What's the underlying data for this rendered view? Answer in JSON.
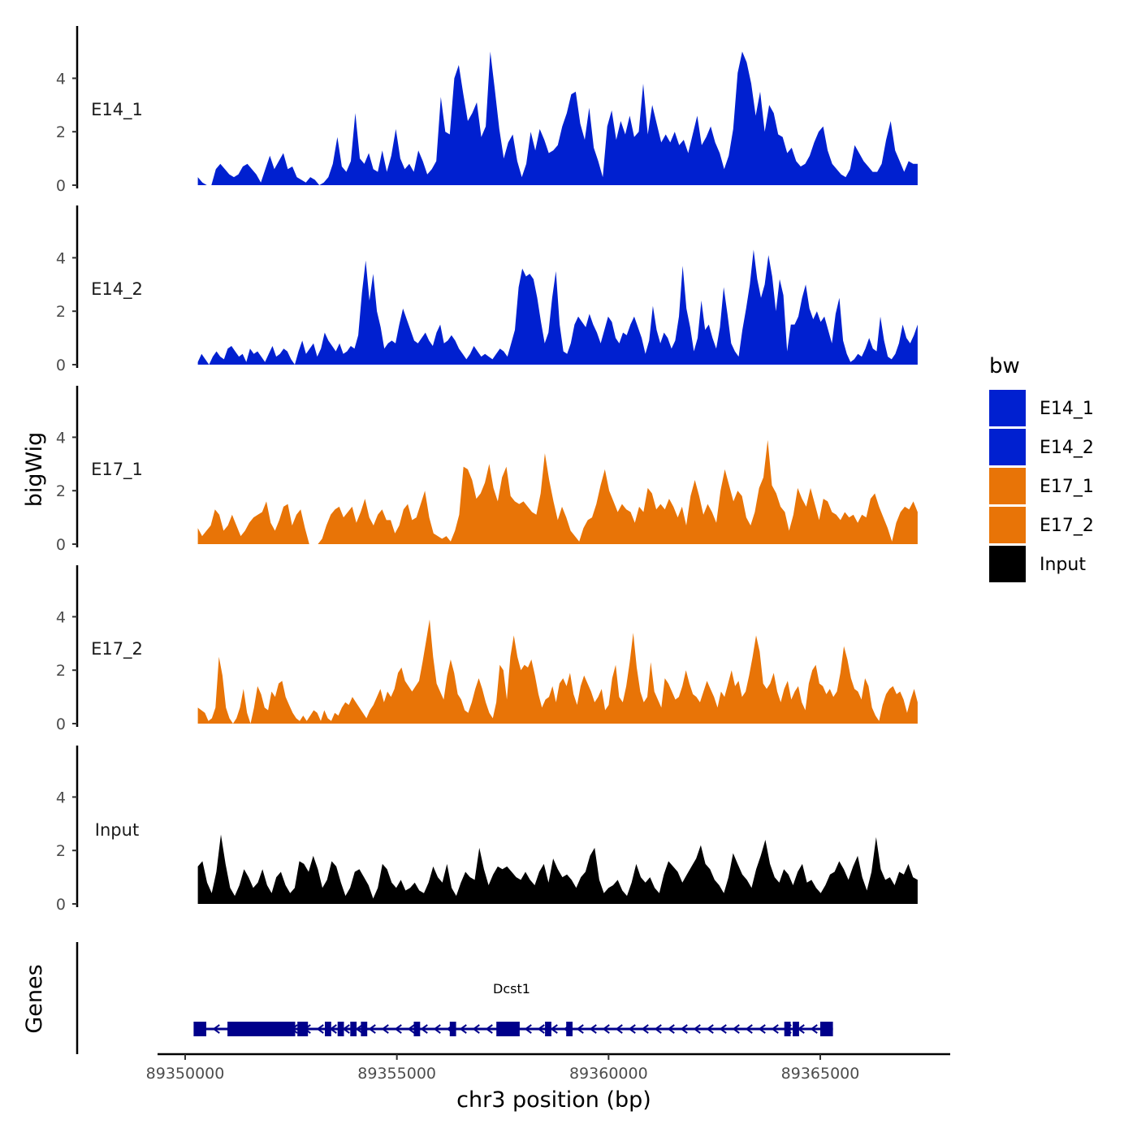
{
  "chart_data": {
    "type": "area",
    "title": "",
    "ylabel": "bigWig",
    "xlabel": "chr3 position (bp)",
    "xlim": [
      89349500,
      89367500
    ],
    "ylim": [
      0,
      5.9
    ],
    "yticks": [
      0,
      2,
      4
    ],
    "xticks": [
      89350000,
      89355000,
      89360000,
      89365000
    ],
    "xtick_labels": [
      "89350000",
      "89355000",
      "89360000",
      "89365000"
    ],
    "ytick_labels": [
      "0",
      "2",
      "4"
    ],
    "legend": {
      "title": "bw",
      "position": "right",
      "entries": [
        {
          "label": "E14_1",
          "color": "#0020D0"
        },
        {
          "label": "E14_2",
          "color": "#0020D0"
        },
        {
          "label": "E17_1",
          "color": "#E87407"
        },
        {
          "label": "E17_2",
          "color": "#E87407"
        },
        {
          "label": "Input",
          "color": "#000000"
        }
      ]
    },
    "x_range_data": [
      89350300,
      89367300
    ],
    "series": [
      {
        "name": "E14_1",
        "color": "#0020D0",
        "values": [
          0.3,
          0.1,
          0,
          0,
          0.6,
          0.8,
          0.6,
          0.4,
          0.3,
          0.4,
          0.7,
          0.8,
          0.6,
          0.4,
          0.1,
          0.6,
          1.1,
          0.6,
          0.9,
          1.2,
          0.6,
          0.7,
          0.3,
          0.2,
          0.1,
          0.3,
          0.2,
          0,
          0.1,
          0.3,
          0.8,
          1.8,
          0.7,
          0.5,
          0.9,
          2.7,
          1.0,
          0.8,
          1.2,
          0.6,
          0.5,
          1.3,
          0.5,
          1.1,
          2.1,
          1.0,
          0.6,
          0.8,
          0.5,
          1.3,
          0.9,
          0.4,
          0.6,
          0.9,
          3.3,
          2.0,
          1.9,
          4.0,
          4.5,
          3.4,
          2.4,
          2.7,
          3.1,
          1.8,
          2.2,
          5.0,
          3.6,
          2.1,
          1.0,
          1.6,
          1.9,
          0.9,
          0.3,
          0.8,
          2.0,
          1.3,
          2.1,
          1.7,
          1.2,
          1.3,
          1.5,
          2.2,
          2.7,
          3.4,
          3.5,
          2.3,
          1.7,
          2.9,
          1.4,
          0.9,
          0.3,
          2.2,
          2.8,
          1.7,
          2.4,
          1.9,
          2.6,
          1.8,
          2.0,
          3.8,
          1.9,
          3.0,
          2.3,
          1.6,
          1.9,
          1.6,
          2.0,
          1.5,
          1.7,
          1.2,
          1.9,
          2.6,
          1.5,
          1.8,
          2.2,
          1.6,
          1.2,
          0.6,
          1.1,
          2.1,
          4.2,
          5.0,
          4.6,
          3.8,
          2.6,
          3.5,
          2.0,
          3.0,
          2.7,
          1.9,
          1.8,
          1.2,
          1.4,
          0.9,
          0.7,
          0.8,
          1.1,
          1.6,
          2.0,
          2.2,
          1.3,
          0.8,
          0.6,
          0.4,
          0.3,
          0.6,
          1.5,
          1.2,
          0.9,
          0.7,
          0.5,
          0.5,
          0.8,
          1.7,
          2.4,
          1.3,
          0.9,
          0.5,
          0.9,
          0.8,
          0.8
        ]
      },
      {
        "name": "E14_2",
        "color": "#0020D0",
        "values": [
          0.1,
          0.4,
          0.2,
          0,
          0.3,
          0.5,
          0.3,
          0.2,
          0.6,
          0.7,
          0.5,
          0.3,
          0.4,
          0.1,
          0.6,
          0.4,
          0.5,
          0.3,
          0.1,
          0.4,
          0.7,
          0.3,
          0.4,
          0.6,
          0.5,
          0.2,
          0,
          0.5,
          0.9,
          0.4,
          0.6,
          0.8,
          0.3,
          0.6,
          1.2,
          0.9,
          0.7,
          0.5,
          0.8,
          0.4,
          0.5,
          0.7,
          0.6,
          1.1,
          2.7,
          3.9,
          2.4,
          3.4,
          2.0,
          1.4,
          0.6,
          0.8,
          0.9,
          0.8,
          1.5,
          2.1,
          1.7,
          1.3,
          0.9,
          0.8,
          1.0,
          1.2,
          0.9,
          0.7,
          1.2,
          1.5,
          0.8,
          0.9,
          1.1,
          0.9,
          0.6,
          0.4,
          0.2,
          0.4,
          0.7,
          0.5,
          0.3,
          0.4,
          0.3,
          0.2,
          0.4,
          0.6,
          0.5,
          0.3,
          0.8,
          1.3,
          2.9,
          3.6,
          3.3,
          3.4,
          3.2,
          2.5,
          1.6,
          0.8,
          1.2,
          2.5,
          3.5,
          1.5,
          0.5,
          0.4,
          0.8,
          1.5,
          1.8,
          1.6,
          1.4,
          1.9,
          1.5,
          1.2,
          0.8,
          1.3,
          1.8,
          1.6,
          1.0,
          0.8,
          1.2,
          1.1,
          1.5,
          1.8,
          1.4,
          1.0,
          0.4,
          0.9,
          2.2,
          1.3,
          0.8,
          1.2,
          1.0,
          0.6,
          0.9,
          1.8,
          3.7,
          2.1,
          1.4,
          0.5,
          1.0,
          2.4,
          1.3,
          1.5,
          1.0,
          0.6,
          1.4,
          2.9,
          1.9,
          0.8,
          0.5,
          0.3,
          1.3,
          2.1,
          3.0,
          4.3,
          3.2,
          2.5,
          3.0,
          4.1,
          3.3,
          2.0,
          3.2,
          2.6,
          0.5,
          1.5,
          1.5,
          1.8,
          2.5,
          3.0,
          2.1,
          1.7,
          2.0,
          1.6,
          1.8,
          1.3,
          0.8,
          1.9,
          2.5,
          0.9,
          0.4,
          0.1,
          0.2,
          0.4,
          0.3,
          0.6,
          1.0,
          0.6,
          0.5,
          1.8,
          0.9,
          0.3,
          0.2,
          0.4,
          0.8,
          1.5,
          1.0,
          0.8,
          1.1,
          1.5
        ]
      },
      {
        "name": "E17_1",
        "color": "#E87407",
        "values": [
          0.6,
          0.3,
          0.5,
          0.7,
          1.3,
          1.1,
          0.5,
          0.7,
          1.1,
          0.7,
          0.3,
          0.5,
          0.8,
          1.0,
          1.1,
          1.2,
          1.6,
          0.8,
          0.5,
          0.9,
          1.4,
          1.5,
          0.7,
          1.1,
          1.3,
          0.6,
          0,
          0,
          0,
          0.2,
          0.7,
          1.1,
          1.3,
          1.4,
          1.0,
          1.2,
          1.4,
          0.8,
          1.2,
          1.7,
          1.0,
          0.7,
          1.1,
          1.3,
          0.9,
          0.9,
          0.4,
          0.7,
          1.3,
          1.5,
          0.9,
          1.0,
          1.5,
          2.0,
          1.0,
          0.4,
          0.3,
          0.2,
          0.3,
          0.1,
          0.5,
          1.1,
          2.9,
          2.8,
          2.4,
          1.7,
          1.9,
          2.3,
          3.0,
          2.1,
          1.6,
          2.5,
          2.9,
          1.8,
          1.6,
          1.5,
          1.6,
          1.4,
          1.2,
          1.1,
          1.9,
          3.4,
          2.4,
          1.6,
          0.9,
          1.4,
          1.0,
          0.5,
          0.3,
          0.1,
          0.6,
          0.9,
          1.0,
          1.5,
          2.2,
          2.8,
          2.0,
          1.6,
          1.2,
          1.5,
          1.3,
          1.2,
          0.8,
          1.4,
          1.2,
          2.1,
          1.9,
          1.3,
          1.5,
          1.3,
          1.7,
          1.4,
          1.0,
          1.4,
          0.7,
          1.8,
          2.4,
          1.8,
          1.1,
          1.5,
          1.2,
          0.8,
          2.0,
          2.8,
          2.2,
          1.6,
          2.0,
          1.8,
          1.0,
          0.7,
          1.2,
          2.1,
          2.5,
          3.9,
          2.2,
          1.9,
          1.4,
          1.2,
          0.5,
          1.1,
          2.1,
          1.7,
          1.4,
          2.1,
          1.5,
          0.9,
          1.7,
          1.6,
          1.2,
          1.1,
          0.9,
          1.2,
          1.0,
          1.1,
          0.8,
          1.1,
          1.0,
          1.7,
          1.9,
          1.4,
          1.0,
          0.6,
          0.1,
          0.8,
          1.2,
          1.4,
          1.3,
          1.6,
          1.2
        ]
      },
      {
        "name": "E17_2",
        "color": "#E87407",
        "values": [
          0.6,
          0.5,
          0.4,
          0.1,
          0.2,
          0.6,
          2.5,
          1.8,
          0.6,
          0.2,
          0,
          0.2,
          0.6,
          1.3,
          0.4,
          0,
          0.6,
          1.4,
          1.1,
          0.6,
          0.5,
          1.2,
          1.0,
          1.5,
          1.6,
          1.0,
          0.7,
          0.4,
          0.2,
          0.1,
          0.3,
          0.1,
          0.3,
          0.5,
          0.4,
          0.1,
          0.5,
          0.2,
          0.1,
          0.4,
          0.3,
          0.6,
          0.8,
          0.7,
          1.0,
          0.8,
          0.6,
          0.4,
          0.2,
          0.5,
          0.7,
          1.0,
          1.3,
          0.8,
          1.2,
          1.0,
          1.3,
          1.9,
          2.1,
          1.6,
          1.4,
          1.2,
          1.4,
          1.6,
          2.3,
          3.1,
          3.9,
          2.5,
          1.5,
          1.2,
          0.9,
          1.8,
          2.4,
          1.9,
          1.1,
          0.9,
          0.5,
          0.4,
          0.8,
          1.3,
          1.7,
          1.3,
          0.8,
          0.4,
          0.2,
          0.8,
          2.2,
          2.0,
          0.9,
          2.5,
          3.3,
          2.5,
          2.0,
          2.2,
          2.1,
          2.4,
          1.8,
          1.1,
          0.6,
          0.9,
          1.0,
          1.4,
          0.8,
          1.5,
          1.7,
          1.4,
          1.9,
          1.1,
          0.7,
          1.4,
          1.8,
          1.5,
          1.2,
          0.8,
          1.0,
          1.3,
          0.5,
          0.7,
          1.7,
          2.2,
          1.0,
          0.8,
          1.4,
          2.3,
          3.4,
          2.1,
          1.2,
          0.8,
          1.0,
          2.3,
          1.2,
          0.9,
          0.6,
          1.7,
          1.5,
          1.2,
          0.9,
          1.0,
          1.4,
          2.0,
          1.5,
          1.1,
          1.0,
          0.8,
          1.2,
          1.6,
          1.3,
          1.0,
          0.6,
          1.2,
          1.0,
          1.5,
          2.0,
          1.4,
          1.6,
          1.0,
          1.2,
          1.8,
          2.5,
          3.3,
          2.7,
          1.5,
          1.3,
          1.5,
          1.9,
          1.2,
          0.8,
          1.3,
          1.6,
          0.9,
          1.2,
          1.4,
          0.8,
          0.5,
          1.5,
          2.0,
          2.2,
          1.5,
          1.4,
          1.1,
          1.3,
          1.0,
          1.2,
          1.9,
          2.9,
          2.4,
          1.7,
          1.3,
          1.2,
          0.9,
          1.7,
          1.4,
          0.6,
          0.3,
          0.1,
          0.7,
          1.1,
          1.3,
          1.4,
          1.1,
          1.2,
          0.9,
          0.4,
          0.9,
          1.3,
          0.8
        ]
      },
      {
        "name": "Input",
        "color": "#000000",
        "values": [
          1.4,
          1.6,
          0.8,
          0.4,
          1.2,
          2.6,
          1.5,
          0.6,
          0.3,
          0.7,
          1.3,
          1.0,
          0.6,
          0.8,
          1.3,
          0.7,
          0.4,
          1.0,
          1.2,
          0.7,
          0.4,
          0.6,
          1.6,
          1.5,
          1.2,
          1.8,
          1.3,
          0.6,
          0.9,
          1.6,
          1.4,
          0.8,
          0.3,
          0.6,
          1.2,
          1.3,
          1.0,
          0.7,
          0.2,
          0.6,
          1.5,
          1.3,
          0.8,
          0.6,
          0.9,
          0.5,
          0.6,
          0.8,
          0.5,
          0.4,
          0.8,
          1.4,
          1.0,
          0.8,
          1.5,
          0.6,
          0.3,
          0.8,
          1.2,
          1.0,
          0.9,
          2.1,
          1.3,
          0.7,
          1.1,
          1.4,
          1.3,
          1.4,
          1.2,
          1.0,
          0.9,
          1.2,
          0.9,
          0.7,
          1.2,
          1.5,
          0.8,
          1.7,
          1.3,
          1.0,
          1.1,
          0.9,
          0.6,
          1.0,
          1.2,
          1.8,
          2.1,
          0.9,
          0.4,
          0.6,
          0.7,
          0.9,
          0.5,
          0.3,
          0.8,
          1.5,
          1.0,
          0.8,
          1.0,
          0.6,
          0.4,
          1.1,
          1.6,
          1.4,
          1.2,
          0.8,
          1.1,
          1.4,
          1.7,
          2.2,
          1.5,
          1.3,
          0.9,
          0.7,
          0.4,
          1.0,
          1.9,
          1.5,
          1.1,
          0.9,
          0.6,
          1.3,
          1.8,
          2.4,
          1.5,
          1.0,
          0.8,
          1.3,
          1.1,
          0.7,
          1.2,
          1.5,
          0.8,
          0.9,
          0.6,
          0.4,
          0.7,
          1.1,
          1.2,
          1.6,
          1.3,
          0.9,
          1.4,
          1.8,
          1.0,
          0.5,
          1.2,
          2.5,
          1.3,
          0.9,
          1.0,
          0.7,
          1.2,
          1.1,
          1.5,
          1.0,
          0.9
        ]
      }
    ],
    "genes": {
      "ylabel": "Genes",
      "gene_name": "Dcst1",
      "color": "#00008B",
      "strand": "-",
      "start": 89350350,
      "end": 89365300,
      "exons": [
        [
          89350200,
          89350500
        ],
        [
          89351000,
          89352600
        ],
        [
          89352650,
          89352900
        ],
        [
          89353300,
          89353450
        ],
        [
          89353600,
          89353750
        ],
        [
          89353900,
          89354050
        ],
        [
          89354150,
          89354300
        ],
        [
          89355400,
          89355550
        ],
        [
          89356250,
          89356400
        ],
        [
          89357350,
          89357500
        ],
        [
          89357500,
          89357900
        ],
        [
          89358500,
          89358650
        ],
        [
          89359000,
          89359150
        ],
        [
          89364150,
          89364300
        ],
        [
          89364350,
          89364500
        ],
        [
          89365000,
          89365300
        ]
      ]
    }
  }
}
